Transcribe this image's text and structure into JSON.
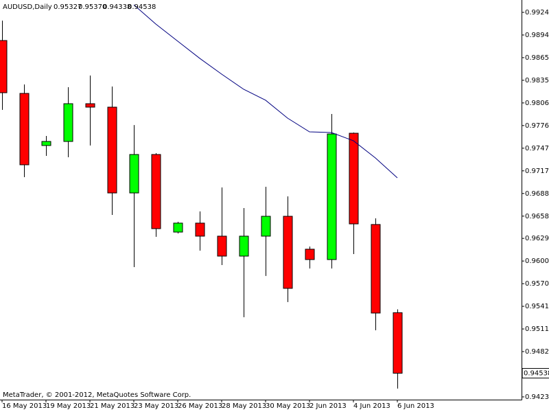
{
  "chart_data": {
    "type": "candlestick",
    "header": {
      "symbol": "AUDUSD,Daily",
      "ohlc": [
        "0.95327",
        "0.95370",
        "0.94338",
        "0.94538"
      ]
    },
    "footer": "MetaTrader, © 2001-2012, MetaQuotes Software Corp.",
    "categories": [
      "16 May 2013",
      null,
      "19 May 2013",
      null,
      "21 May 2013",
      null,
      "23 May 2013",
      null,
      "26 May 2013",
      null,
      "28 May 2013",
      null,
      "30 May 2013",
      null,
      "2 Jun 2013",
      null,
      "4 Jun 2013",
      null,
      "6 Jun 2013"
    ],
    "open": [
      0.98873,
      0.98184,
      0.97505,
      0.97558,
      0.9805,
      0.98005,
      0.96887,
      0.97388,
      0.96377,
      0.96494,
      0.96324,
      0.96064,
      0.96324,
      0.96583,
      0.96154,
      0.96019,
      0.97665,
      0.96476,
      0.95327
    ],
    "high": [
      0.99133,
      0.98301,
      0.9763,
      0.98265,
      0.98417,
      0.98274,
      0.97772,
      0.97406,
      0.96511,
      0.96646,
      0.96959,
      0.9669,
      0.96968,
      0.96842,
      0.96189,
      0.97916,
      0.97674,
      0.96556,
      0.9537
    ],
    "low": [
      0.9797,
      0.97093,
      0.9737,
      0.97352,
      0.97505,
      0.96601,
      0.95921,
      0.96315,
      0.96359,
      0.96136,
      0.95948,
      0.95268,
      0.95805,
      0.95465,
      0.95903,
      0.95903,
      0.96091,
      0.95098,
      0.94338
    ],
    "close": [
      0.98193,
      0.97254,
      0.97558,
      0.9805,
      0.98005,
      0.96887,
      0.97388,
      0.96422,
      0.96494,
      0.96324,
      0.96064,
      0.96324,
      0.96583,
      0.95644,
      0.96019,
      0.97656,
      0.96484,
      0.95322,
      0.94538
    ],
    "up_color": "#00ff00",
    "down_color": "#ff0000",
    "moving_average": {
      "color": "#000080",
      "values": [
        null,
        null,
        null,
        null,
        null,
        null,
        0.99338,
        0.99088,
        0.98864,
        0.98641,
        0.98435,
        0.98238,
        0.98095,
        0.97862,
        0.97683,
        0.97674,
        0.97567,
        0.97343,
        0.97084
      ]
    },
    "last_price_label": "0.94538",
    "ylim": [
      0.94194,
      0.99401
    ],
    "yticks": [
      {
        "value": 0.9423,
        "label": "0.94230"
      },
      {
        "value": 0.9482,
        "label": "0.94820"
      },
      {
        "value": 0.95115,
        "label": "0.95115"
      },
      {
        "value": 0.9541,
        "label": "0.95410"
      },
      {
        "value": 0.95705,
        "label": "0.95705"
      },
      {
        "value": 0.96,
        "label": "0.96000"
      },
      {
        "value": 0.96295,
        "label": "0.96295"
      },
      {
        "value": 0.96585,
        "label": "0.96585"
      },
      {
        "value": 0.9688,
        "label": "0.96880"
      },
      {
        "value": 0.97175,
        "label": "0.97175"
      },
      {
        "value": 0.9747,
        "label": "0.97470"
      },
      {
        "value": 0.97765,
        "label": "0.97765"
      },
      {
        "value": 0.9806,
        "label": "0.98060"
      },
      {
        "value": 0.98355,
        "label": "0.98355"
      },
      {
        "value": 0.9865,
        "label": "0.98650"
      },
      {
        "value": 0.98945,
        "label": "0.98945"
      },
      {
        "value": 0.9924,
        "label": "0.99240"
      }
    ]
  }
}
